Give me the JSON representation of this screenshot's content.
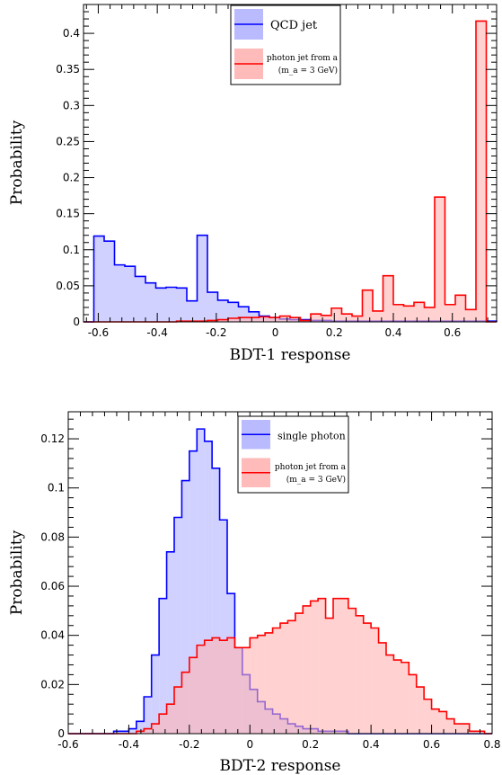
{
  "chart_data": [
    {
      "type": "histogram",
      "xlabel": "BDT-1 response",
      "ylabel": "Probability",
      "xlim": [
        -0.65,
        0.75
      ],
      "ylim": [
        0,
        0.44
      ],
      "x_ticks": [
        "-0.6",
        "-0.4",
        "-0.2",
        "0",
        "0.2",
        "0.4",
        "0.6"
      ],
      "y_ticks": [
        "0",
        "0.05",
        "0.1",
        "0.15",
        "0.2",
        "0.25",
        "0.3",
        "0.35",
        "0.4"
      ],
      "bins": {
        "start": -0.65,
        "width": 0.035
      },
      "legend_position": "top-center",
      "series": [
        {
          "name": "QCD jet",
          "color": "#0000ff",
          "fill": "#b3b3ff",
          "values": [
            0.0,
            0.119,
            0.112,
            0.079,
            0.077,
            0.063,
            0.054,
            0.047,
            0.048,
            0.047,
            0.029,
            0.12,
            0.041,
            0.03,
            0.027,
            0.021,
            0.014,
            0.008,
            0.006,
            0.004,
            0.003,
            0.003,
            0.002,
            0.002,
            0.001,
            0.001,
            0.001,
            0.001,
            0.001,
            0.001,
            0.001,
            0.001,
            0.001,
            0.001,
            0.001,
            0.001,
            0.001,
            0.001,
            0.001,
            0.001
          ]
        },
        {
          "name": "photon jet from a",
          "name_extra": "(m_a = 3 GeV)",
          "color": "#ff0000",
          "fill": "#ffb3b3",
          "values": [
            0.0,
            0.0,
            0.0,
            0.0,
            0.0,
            0.0,
            0.0,
            0.0,
            0.0,
            0.001,
            0.001,
            0.001,
            0.002,
            0.003,
            0.005,
            0.006,
            0.006,
            0.007,
            0.006,
            0.008,
            0.006,
            0.002,
            0.011,
            0.009,
            0.019,
            0.011,
            0.008,
            0.044,
            0.015,
            0.064,
            0.024,
            0.022,
            0.027,
            0.02,
            0.173,
            0.024,
            0.037,
            0.017,
            0.417,
            0.0
          ]
        }
      ]
    },
    {
      "type": "histogram",
      "xlabel": "BDT-2 response",
      "ylabel": "Probability",
      "xlim": [
        -0.6,
        0.8
      ],
      "ylim": [
        0,
        0.131
      ],
      "x_ticks": [
        "-0.6",
        "-0.4",
        "-0.2",
        "0",
        "0.2",
        "0.4",
        "0.6",
        "0.8"
      ],
      "y_ticks": [
        "0",
        "0.02",
        "0.04",
        "0.06",
        "0.08",
        "0.1",
        "0.12"
      ],
      "bins": {
        "start": -0.6,
        "width": 0.025
      },
      "legend_position": "top-center",
      "series": [
        {
          "name": "single photon",
          "color": "#0000ff",
          "fill": "#b3b3ff",
          "values": [
            0.0,
            0.0,
            0.0,
            0.0,
            0.0,
            0.0,
            0.001,
            0.001,
            0.002,
            0.005,
            0.015,
            0.032,
            0.055,
            0.074,
            0.088,
            0.103,
            0.115,
            0.124,
            0.119,
            0.108,
            0.087,
            0.057,
            0.035,
            0.024,
            0.018,
            0.013,
            0.01,
            0.008,
            0.006,
            0.004,
            0.003,
            0.002,
            0.002,
            0.001,
            0.001,
            0.001,
            0.001,
            0.0,
            0.0,
            0.0,
            0.0,
            0.0,
            0.0,
            0.0,
            0.0,
            0.0,
            0.0,
            0.0,
            0.0,
            0.0,
            0.0,
            0.0,
            0.0,
            0.0,
            0.0,
            0.0
          ]
        },
        {
          "name": "photon jet from a",
          "name_extra": "(m_a = 3 GeV)",
          "color": "#ff0000",
          "fill": "#ffb3b3",
          "values": [
            0.0,
            0.0,
            0.0,
            0.0,
            0.0,
            0.0,
            0.0,
            0.0,
            0.0,
            0.001,
            0.002,
            0.004,
            0.008,
            0.012,
            0.019,
            0.025,
            0.031,
            0.036,
            0.038,
            0.039,
            0.038,
            0.039,
            0.035,
            0.035,
            0.039,
            0.04,
            0.041,
            0.043,
            0.045,
            0.046,
            0.049,
            0.052,
            0.054,
            0.055,
            0.047,
            0.055,
            0.055,
            0.051,
            0.048,
            0.045,
            0.043,
            0.037,
            0.032,
            0.03,
            0.029,
            0.024,
            0.019,
            0.014,
            0.01,
            0.009,
            0.006,
            0.004,
            0.004,
            0.001,
            0.001,
            0.0
          ]
        }
      ]
    }
  ]
}
